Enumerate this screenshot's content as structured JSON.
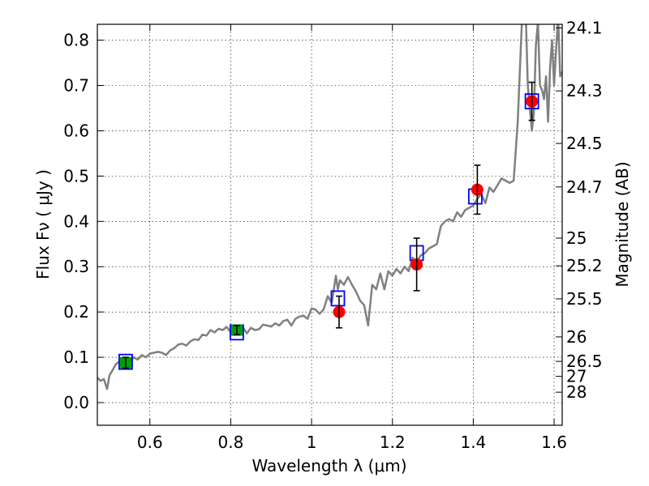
{
  "chart_data": {
    "type": "scatter",
    "title": "",
    "xlabel": "Wavelength  λ (μm)",
    "ylabel": "Flux  Fν  ( μJy )",
    "ylabel_right": "Magnitude (AB)",
    "xlim": [
      0.47,
      1.62
    ],
    "ylim": [
      -0.05,
      0.835
    ],
    "grid": true,
    "x_ticks": [
      0.6,
      0.8,
      1,
      1.2,
      1.4,
      1.6
    ],
    "x_tick_labels": [
      "0.6",
      "0.8",
      "1",
      "1.2",
      "1.4",
      "1.6"
    ],
    "y_ticks": [
      0.0,
      0.1,
      0.2,
      0.3,
      0.4,
      0.5,
      0.6,
      0.7,
      0.8
    ],
    "y_tick_labels": [
      "0.0",
      "0.1",
      "0.2",
      "0.3",
      "0.4",
      "0.5",
      "0.6",
      "0.7",
      "0.8"
    ],
    "right_ticks": [
      {
        "label": "24.1",
        "flux": 0.827
      },
      {
        "label": "24.3",
        "flux": 0.688
      },
      {
        "label": "24.5",
        "flux": 0.572
      },
      {
        "label": "24.7",
        "flux": 0.476
      },
      {
        "label": "25",
        "flux": 0.363
      },
      {
        "label": "25.2",
        "flux": 0.302
      },
      {
        "label": "25.5",
        "flux": 0.229
      },
      {
        "label": "26",
        "flux": 0.145
      },
      {
        "label": "26.5",
        "flux": 0.091
      },
      {
        "label": "27",
        "flux": 0.058
      },
      {
        "label": "28",
        "flux": 0.023
      }
    ],
    "series": [
      {
        "kind": "model-spectrum",
        "color": "#808080",
        "x": [
          0.47,
          0.478,
          0.486,
          0.494,
          0.5,
          0.508,
          0.516,
          0.524,
          0.53,
          0.54,
          0.55,
          0.56,
          0.57,
          0.58,
          0.59,
          0.6,
          0.61,
          0.62,
          0.63,
          0.64,
          0.65,
          0.66,
          0.67,
          0.68,
          0.69,
          0.7,
          0.71,
          0.72,
          0.73,
          0.74,
          0.75,
          0.76,
          0.77,
          0.78,
          0.79,
          0.8,
          0.81,
          0.82,
          0.83,
          0.84,
          0.85,
          0.86,
          0.87,
          0.88,
          0.89,
          0.9,
          0.91,
          0.92,
          0.93,
          0.94,
          0.95,
          0.96,
          0.97,
          0.98,
          0.99,
          1.0,
          1.01,
          1.02,
          1.03,
          1.04,
          1.05,
          1.06,
          1.065,
          1.07,
          1.08,
          1.09,
          1.1,
          1.11,
          1.12,
          1.13,
          1.14,
          1.15,
          1.16,
          1.17,
          1.18,
          1.19,
          1.2,
          1.21,
          1.22,
          1.23,
          1.24,
          1.25,
          1.26,
          1.27,
          1.28,
          1.29,
          1.3,
          1.31,
          1.32,
          1.33,
          1.34,
          1.35,
          1.36,
          1.37,
          1.38,
          1.39,
          1.4,
          1.41,
          1.42,
          1.43,
          1.44,
          1.45,
          1.46,
          1.47,
          1.48,
          1.49,
          1.5,
          1.51,
          1.52,
          1.525,
          1.53,
          1.535,
          1.54,
          1.545,
          1.55,
          1.555,
          1.56,
          1.565,
          1.57,
          1.575,
          1.58,
          1.585,
          1.59,
          1.595,
          1.6,
          1.605,
          1.61,
          1.615,
          1.62
        ],
        "y": [
          0.055,
          0.048,
          0.052,
          0.03,
          0.06,
          0.072,
          0.085,
          0.09,
          0.095,
          0.088,
          0.09,
          0.1,
          0.095,
          0.105,
          0.1,
          0.108,
          0.11,
          0.112,
          0.11,
          0.105,
          0.115,
          0.12,
          0.128,
          0.13,
          0.126,
          0.135,
          0.14,
          0.138,
          0.15,
          0.148,
          0.16,
          0.155,
          0.163,
          0.16,
          0.167,
          0.155,
          0.165,
          0.158,
          0.166,
          0.153,
          0.165,
          0.16,
          0.162,
          0.172,
          0.17,
          0.168,
          0.175,
          0.17,
          0.18,
          0.183,
          0.17,
          0.185,
          0.19,
          0.192,
          0.185,
          0.208,
          0.205,
          0.196,
          0.206,
          0.235,
          0.22,
          0.28,
          0.25,
          0.27,
          0.26,
          0.277,
          0.26,
          0.245,
          0.225,
          0.215,
          0.17,
          0.26,
          0.25,
          0.285,
          0.25,
          0.29,
          0.28,
          0.295,
          0.285,
          0.3,
          0.29,
          0.32,
          0.31,
          0.325,
          0.33,
          0.34,
          0.345,
          0.35,
          0.39,
          0.4,
          0.405,
          0.4,
          0.42,
          0.41,
          0.425,
          0.43,
          0.435,
          0.45,
          0.46,
          0.44,
          0.475,
          0.465,
          0.48,
          0.495,
          0.49,
          0.485,
          0.49,
          0.62,
          0.835,
          0.85,
          0.85,
          0.7,
          0.65,
          0.6,
          0.64,
          0.79,
          0.84,
          0.7,
          0.69,
          0.67,
          0.72,
          0.62,
          0.74,
          0.8,
          0.7,
          0.78,
          0.85,
          0.72,
          0.73
        ]
      },
      {
        "kind": "model-fluxes",
        "marker": "open-square",
        "color": "#0000ff",
        "x": [
          0.54,
          0.815,
          1.065,
          1.26,
          1.405,
          1.545
        ],
        "y": [
          0.09,
          0.155,
          0.23,
          0.33,
          0.455,
          0.665
        ]
      },
      {
        "kind": "observed-fluxes",
        "marker": "circle",
        "color": "#ff0000",
        "x": [
          1.068,
          1.26,
          1.41,
          1.545
        ],
        "y": [
          0.2,
          0.305,
          0.47,
          0.665
        ],
        "yerr": [
          0.035,
          0.058,
          0.054,
          0.042
        ]
      },
      {
        "kind": "observed-fluxes",
        "marker": "square",
        "color": "#00a000",
        "x": [
          0.54,
          0.815
        ],
        "y": [
          0.088,
          0.16
        ],
        "yerr": [
          0.012,
          0.01
        ]
      }
    ]
  }
}
